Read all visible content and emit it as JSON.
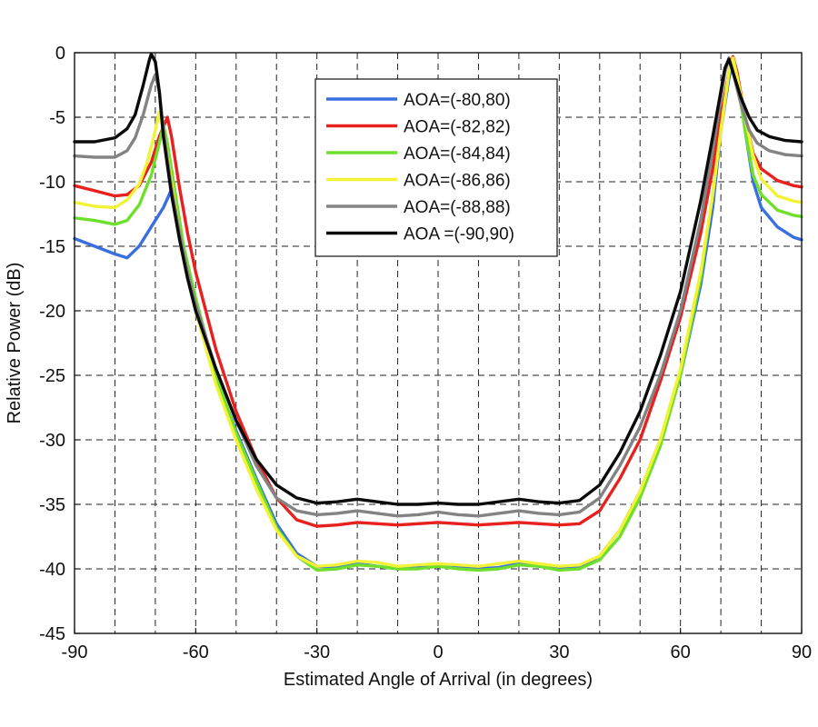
{
  "chart_data": {
    "type": "line",
    "title": "",
    "xlabel": "Estimated Angle of Arrival (in degrees)",
    "ylabel": "Relative Power (dB)",
    "xlim": [
      -90,
      90
    ],
    "ylim": [
      -45,
      0
    ],
    "grid": true,
    "legend_position": "top-center",
    "x_ticks": [
      -90,
      -60,
      -30,
      0,
      30,
      60,
      90
    ],
    "x_tick_labels": [
      "-90",
      "-60",
      "-30",
      "0",
      "30",
      "60",
      "90"
    ],
    "y_ticks": [
      0,
      -5,
      -10,
      -15,
      -20,
      -25,
      -30,
      -35,
      -40,
      -45
    ],
    "y_tick_labels": [
      "0",
      "-5",
      "-10",
      "-15",
      "-20",
      "-25",
      "-30",
      "-35",
      "-40",
      "-45"
    ],
    "x_grid": [
      -80,
      -70,
      -60,
      -50,
      -40,
      -30,
      -20,
      -10,
      0,
      10,
      20,
      30,
      40,
      50,
      60,
      70,
      80
    ],
    "series": [
      {
        "name": "AOA=(-80,80)",
        "color": "#3a6fe0",
        "points": [
          [
            -90,
            -14.4
          ],
          [
            -85,
            -15.0
          ],
          [
            -80,
            -15.6
          ],
          [
            -77,
            -15.9
          ],
          [
            -74,
            -15.0
          ],
          [
            -71,
            -13.5
          ],
          [
            -68,
            -12.0
          ],
          [
            -66,
            -10.6
          ],
          [
            -64,
            -14
          ],
          [
            -62,
            -17
          ],
          [
            -60,
            -20
          ],
          [
            -55,
            -25.2
          ],
          [
            -50,
            -29.3
          ],
          [
            -45,
            -33
          ],
          [
            -40,
            -36.5
          ],
          [
            -35,
            -38.8
          ],
          [
            -30,
            -39.8
          ],
          [
            -25,
            -39.9
          ],
          [
            -20,
            -39.6
          ],
          [
            -15,
            -39.8
          ],
          [
            -10,
            -40
          ],
          [
            -5,
            -39.9
          ],
          [
            0,
            -39.7
          ],
          [
            5,
            -39.9
          ],
          [
            10,
            -40
          ],
          [
            15,
            -39.9
          ],
          [
            20,
            -39.6
          ],
          [
            25,
            -39.8
          ],
          [
            30,
            -40
          ],
          [
            35,
            -39.9
          ],
          [
            40,
            -39
          ],
          [
            45,
            -37
          ],
          [
            50,
            -34
          ],
          [
            55,
            -30
          ],
          [
            60,
            -25
          ],
          [
            65,
            -18
          ],
          [
            68,
            -12
          ],
          [
            70,
            -6
          ],
          [
            72,
            -2
          ],
          [
            73,
            -0.5
          ],
          [
            74,
            -1.5
          ],
          [
            76,
            -6
          ],
          [
            78,
            -10
          ],
          [
            80,
            -12
          ],
          [
            84,
            -13.5
          ],
          [
            88,
            -14.3
          ],
          [
            90,
            -14.5
          ]
        ]
      },
      {
        "name": "AOA=(-82,82)",
        "color": "#e8201e",
        "points": [
          [
            -90,
            -10.3
          ],
          [
            -85,
            -10.7
          ],
          [
            -80,
            -11.1
          ],
          [
            -77,
            -11.0
          ],
          [
            -74,
            -10.3
          ],
          [
            -71,
            -8.5
          ],
          [
            -69,
            -6.5
          ],
          [
            -67,
            -5.0
          ],
          [
            -66,
            -6.5
          ],
          [
            -64,
            -10.5
          ],
          [
            -62,
            -14
          ],
          [
            -60,
            -17
          ],
          [
            -55,
            -23
          ],
          [
            -50,
            -27.8
          ],
          [
            -45,
            -31.5
          ],
          [
            -40,
            -34.5
          ],
          [
            -35,
            -36.2
          ],
          [
            -30,
            -36.7
          ],
          [
            -25,
            -36.6
          ],
          [
            -20,
            -36.4
          ],
          [
            -15,
            -36.5
          ],
          [
            -10,
            -36.6
          ],
          [
            -5,
            -36.5
          ],
          [
            0,
            -36.4
          ],
          [
            5,
            -36.5
          ],
          [
            10,
            -36.6
          ],
          [
            15,
            -36.5
          ],
          [
            20,
            -36.4
          ],
          [
            25,
            -36.5
          ],
          [
            30,
            -36.6
          ],
          [
            35,
            -36.5
          ],
          [
            40,
            -35.5
          ],
          [
            45,
            -33
          ],
          [
            50,
            -30
          ],
          [
            55,
            -25.5
          ],
          [
            60,
            -20.5
          ],
          [
            65,
            -14
          ],
          [
            68,
            -9
          ],
          [
            70,
            -5
          ],
          [
            72,
            -1.5
          ],
          [
            73,
            -0.3
          ],
          [
            74,
            -1.5
          ],
          [
            76,
            -5
          ],
          [
            78,
            -7.8
          ],
          [
            80,
            -9
          ],
          [
            84,
            -9.9
          ],
          [
            88,
            -10.3
          ],
          [
            90,
            -10.4
          ]
        ]
      },
      {
        "name": "AOA=(-84,84)",
        "color": "#6ee02c",
        "points": [
          [
            -90,
            -12.8
          ],
          [
            -85,
            -13.0
          ],
          [
            -80,
            -13.3
          ],
          [
            -77,
            -13.0
          ],
          [
            -74,
            -11.8
          ],
          [
            -71,
            -9.5
          ],
          [
            -69,
            -7.0
          ],
          [
            -68,
            -5.6
          ],
          [
            -67,
            -7
          ],
          [
            -65,
            -11
          ],
          [
            -63,
            -15
          ],
          [
            -60,
            -19
          ],
          [
            -55,
            -25
          ],
          [
            -50,
            -29.5
          ],
          [
            -45,
            -33.2
          ],
          [
            -40,
            -36.8
          ],
          [
            -35,
            -39
          ],
          [
            -30,
            -40.1
          ],
          [
            -25,
            -40
          ],
          [
            -20,
            -39.7
          ],
          [
            -15,
            -39.8
          ],
          [
            -10,
            -40
          ],
          [
            -5,
            -40
          ],
          [
            0,
            -39.8
          ],
          [
            5,
            -40
          ],
          [
            10,
            -40.1
          ],
          [
            15,
            -40
          ],
          [
            20,
            -39.7
          ],
          [
            25,
            -39.8
          ],
          [
            30,
            -40.1
          ],
          [
            35,
            -40
          ],
          [
            40,
            -39.3
          ],
          [
            45,
            -37.5
          ],
          [
            50,
            -34.5
          ],
          [
            55,
            -30.5
          ],
          [
            60,
            -25
          ],
          [
            65,
            -17.5
          ],
          [
            68,
            -11
          ],
          [
            70,
            -6
          ],
          [
            72,
            -1.5
          ],
          [
            73,
            -0.5
          ],
          [
            74,
            -2
          ],
          [
            76,
            -6
          ],
          [
            78,
            -9.5
          ],
          [
            80,
            -11
          ],
          [
            84,
            -12.2
          ],
          [
            88,
            -12.6
          ],
          [
            90,
            -12.7
          ]
        ]
      },
      {
        "name": "AOA=(-86,86)",
        "color": "#f2f236",
        "points": [
          [
            -90,
            -11.6
          ],
          [
            -85,
            -11.9
          ],
          [
            -80,
            -12.0
          ],
          [
            -77,
            -11.4
          ],
          [
            -74,
            -10.2
          ],
          [
            -72,
            -8.5
          ],
          [
            -70,
            -6
          ],
          [
            -69,
            -4.6
          ],
          [
            -68,
            -6
          ],
          [
            -66,
            -10
          ],
          [
            -64,
            -14
          ],
          [
            -62,
            -17
          ],
          [
            -60,
            -20
          ],
          [
            -55,
            -25.7
          ],
          [
            -50,
            -30
          ],
          [
            -45,
            -33.8
          ],
          [
            -40,
            -37
          ],
          [
            -35,
            -39
          ],
          [
            -30,
            -39.8
          ],
          [
            -25,
            -39.7
          ],
          [
            -20,
            -39.4
          ],
          [
            -15,
            -39.5
          ],
          [
            -10,
            -39.8
          ],
          [
            -5,
            -39.7
          ],
          [
            0,
            -39.6
          ],
          [
            5,
            -39.7
          ],
          [
            10,
            -39.8
          ],
          [
            15,
            -39.6
          ],
          [
            20,
            -39.4
          ],
          [
            25,
            -39.6
          ],
          [
            30,
            -39.8
          ],
          [
            35,
            -39.7
          ],
          [
            40,
            -39
          ],
          [
            45,
            -37
          ],
          [
            50,
            -34
          ],
          [
            55,
            -30
          ],
          [
            60,
            -24.5
          ],
          [
            65,
            -17
          ],
          [
            68,
            -11
          ],
          [
            70,
            -6
          ],
          [
            72,
            -1.5
          ],
          [
            73,
            -0.4
          ],
          [
            74,
            -1.8
          ],
          [
            76,
            -5
          ],
          [
            78,
            -8
          ],
          [
            80,
            -9.8
          ],
          [
            84,
            -11.1
          ],
          [
            88,
            -11.5
          ],
          [
            90,
            -11.6
          ]
        ]
      },
      {
        "name": "AOA=(-88,88)",
        "color": "#838383",
        "points": [
          [
            -90,
            -8.0
          ],
          [
            -85,
            -8.1
          ],
          [
            -80,
            -8.1
          ],
          [
            -77,
            -7.6
          ],
          [
            -75,
            -6.6
          ],
          [
            -73,
            -4.8
          ],
          [
            -71,
            -2.5
          ],
          [
            -70,
            -1.7
          ],
          [
            -69,
            -3
          ],
          [
            -68,
            -6
          ],
          [
            -66,
            -10.5
          ],
          [
            -64,
            -14
          ],
          [
            -62,
            -17
          ],
          [
            -60,
            -19.5
          ],
          [
            -55,
            -24.5
          ],
          [
            -50,
            -28.5
          ],
          [
            -45,
            -32
          ],
          [
            -40,
            -34.5
          ],
          [
            -35,
            -35.5
          ],
          [
            -30,
            -35.8
          ],
          [
            -25,
            -35.7
          ],
          [
            -20,
            -35.5
          ],
          [
            -15,
            -35.7
          ],
          [
            -10,
            -35.9
          ],
          [
            -5,
            -35.8
          ],
          [
            0,
            -35.6
          ],
          [
            5,
            -35.8
          ],
          [
            10,
            -35.9
          ],
          [
            15,
            -35.7
          ],
          [
            20,
            -35.5
          ],
          [
            25,
            -35.7
          ],
          [
            30,
            -35.8
          ],
          [
            35,
            -35.6
          ],
          [
            40,
            -34.5
          ],
          [
            45,
            -32
          ],
          [
            50,
            -29
          ],
          [
            55,
            -25
          ],
          [
            60,
            -20
          ],
          [
            65,
            -13
          ],
          [
            68,
            -7.5
          ],
          [
            70,
            -3.5
          ],
          [
            71,
            -1.5
          ],
          [
            72,
            -0.4
          ],
          [
            73,
            -1.5
          ],
          [
            75,
            -4
          ],
          [
            77,
            -6
          ],
          [
            79,
            -7
          ],
          [
            82,
            -7.6
          ],
          [
            86,
            -7.9
          ],
          [
            90,
            -8.0
          ]
        ]
      },
      {
        "name": "AOA =(-90,90)",
        "color": "#0a0a0a",
        "points": [
          [
            -90,
            -6.9
          ],
          [
            -85,
            -6.9
          ],
          [
            -80,
            -6.6
          ],
          [
            -77,
            -5.9
          ],
          [
            -75,
            -4.8
          ],
          [
            -73,
            -2.5
          ],
          [
            -71.5,
            -0.6
          ],
          [
            -71,
            -0.1
          ],
          [
            -70,
            -0.7
          ],
          [
            -69,
            -3
          ],
          [
            -68,
            -6.5
          ],
          [
            -66,
            -11
          ],
          [
            -64,
            -14.5
          ],
          [
            -62,
            -17.5
          ],
          [
            -60,
            -20
          ],
          [
            -55,
            -24.5
          ],
          [
            -50,
            -28.5
          ],
          [
            -45,
            -31.5
          ],
          [
            -40,
            -33.5
          ],
          [
            -35,
            -34.5
          ],
          [
            -30,
            -34.9
          ],
          [
            -25,
            -34.8
          ],
          [
            -20,
            -34.6
          ],
          [
            -15,
            -34.8
          ],
          [
            -10,
            -35
          ],
          [
            -5,
            -35
          ],
          [
            0,
            -34.9
          ],
          [
            5,
            -35
          ],
          [
            10,
            -35
          ],
          [
            15,
            -34.8
          ],
          [
            20,
            -34.6
          ],
          [
            25,
            -34.8
          ],
          [
            30,
            -34.9
          ],
          [
            35,
            -34.7
          ],
          [
            40,
            -33.5
          ],
          [
            45,
            -31
          ],
          [
            50,
            -27.8
          ],
          [
            55,
            -23.5
          ],
          [
            60,
            -18.5
          ],
          [
            65,
            -11.5
          ],
          [
            68,
            -6.5
          ],
          [
            70,
            -3
          ],
          [
            71,
            -1.2
          ],
          [
            72,
            -0.5
          ],
          [
            73,
            -1.5
          ],
          [
            75,
            -3.5
          ],
          [
            77,
            -5
          ],
          [
            79,
            -6
          ],
          [
            82,
            -6.5
          ],
          [
            86,
            -6.8
          ],
          [
            90,
            -6.9
          ]
        ]
      }
    ]
  }
}
